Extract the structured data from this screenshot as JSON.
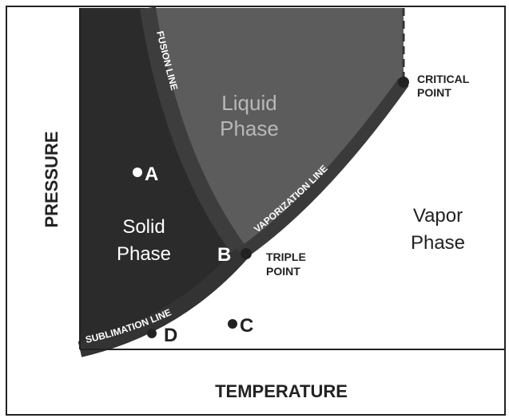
{
  "axes": {
    "y_label": "PRESSURE",
    "x_label": "TEMPERATURE"
  },
  "regions": {
    "liquid": [
      "Liquid",
      "Phase"
    ],
    "solid": [
      "Solid",
      "Phase"
    ],
    "vapor": [
      "Vapor",
      "Phase"
    ]
  },
  "lines": {
    "fusion": "FUSION LINE",
    "vaporization": "VAPORIZATION LINE",
    "sublimation": "SUBLIMATION LINE"
  },
  "special_points": {
    "critical": [
      "CRITICAL",
      "POINT"
    ],
    "triple": [
      "TRIPLE",
      "POINT"
    ]
  },
  "points": {
    "a": "A",
    "b": "B",
    "c": "C",
    "d": "D"
  }
}
